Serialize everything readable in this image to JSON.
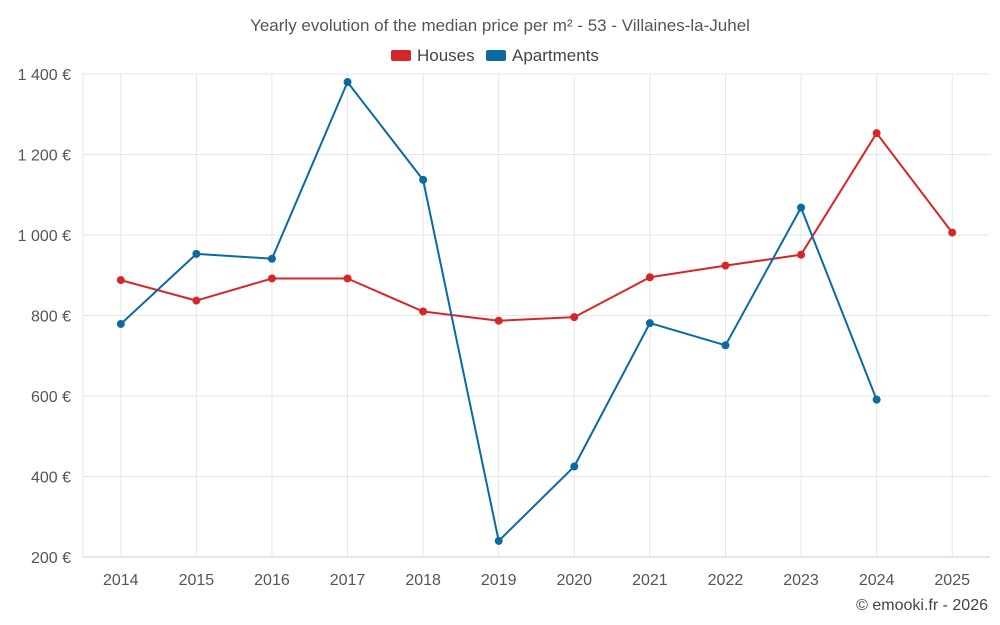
{
  "chart_data": {
    "type": "line",
    "title": "Yearly evolution of the median price per m² - 53 - Villaines-la-Juhel",
    "categories": [
      "2014",
      "2015",
      "2016",
      "2017",
      "2018",
      "2019",
      "2020",
      "2021",
      "2022",
      "2023",
      "2024",
      "2025"
    ],
    "ylim": [
      200,
      1400
    ],
    "yticks": [
      200,
      400,
      600,
      800,
      1000,
      1200,
      1400
    ],
    "ytick_labels": [
      "200 €",
      "400 €",
      "600 €",
      "800 €",
      "1 000 €",
      "1 200 €",
      "1 400 €"
    ],
    "xlabel": "",
    "ylabel": "",
    "grid": true,
    "legend_position": "top-center",
    "series": [
      {
        "name": "Houses",
        "color": "#d62728",
        "values": [
          888,
          837,
          892,
          892,
          810,
          787,
          796,
          895,
          924,
          951,
          1253,
          1006
        ]
      },
      {
        "name": "Apartments",
        "color": "#0a6aa1",
        "values": [
          779,
          953,
          941,
          1380,
          1137,
          240,
          425,
          781,
          726,
          1068,
          591,
          null
        ]
      }
    ]
  },
  "credit": "© emooki.fr - 2026"
}
